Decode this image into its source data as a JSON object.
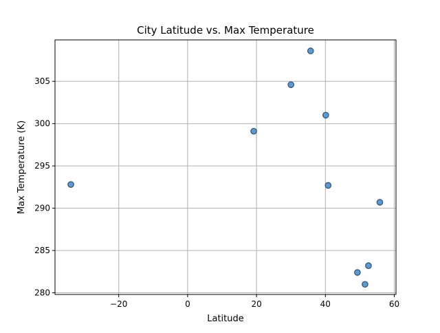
{
  "chart_data": {
    "type": "scatter",
    "title": "City Latitude vs. Max Temperature",
    "xlabel": "Latitude",
    "ylabel": "Max Temperature (K)",
    "xlim": [
      -38.5,
      60.5
    ],
    "ylim": [
      279.8,
      309.9
    ],
    "xticks": [
      -20,
      0,
      20,
      40,
      60
    ],
    "xtick_labels": [
      "−20",
      "0",
      "20",
      "40",
      "60"
    ],
    "yticks": [
      280,
      285,
      290,
      295,
      300,
      305
    ],
    "ytick_labels": [
      "280",
      "285",
      "290",
      "295",
      "300",
      "305"
    ],
    "grid": true,
    "marker_color": "#5b9bd5",
    "marker_edge_color": "#2f4f6f",
    "points": [
      {
        "x": 35.7,
        "y": 308.6
      },
      {
        "x": 30.0,
        "y": 304.6
      },
      {
        "x": 40.1,
        "y": 301.0
      },
      {
        "x": 19.2,
        "y": 299.1
      },
      {
        "x": -33.9,
        "y": 292.8
      },
      {
        "x": 40.8,
        "y": 292.7
      },
      {
        "x": 55.8,
        "y": 290.7
      },
      {
        "x": 52.5,
        "y": 283.2
      },
      {
        "x": 49.3,
        "y": 282.4
      },
      {
        "x": 51.5,
        "y": 281.0
      }
    ]
  }
}
